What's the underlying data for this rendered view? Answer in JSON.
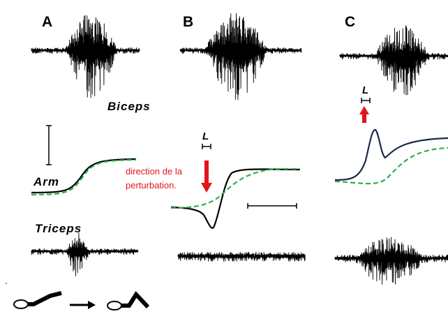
{
  "panels": [
    {
      "label": "A"
    },
    {
      "label": "B"
    },
    {
      "label": "C"
    }
  ],
  "labels": {
    "biceps": "Biceps",
    "arm": "Arm",
    "triceps": "Triceps"
  },
  "markers": [
    "L",
    "L"
  ],
  "annotation": [
    "direction de la",
    "perturbation."
  ]
}
